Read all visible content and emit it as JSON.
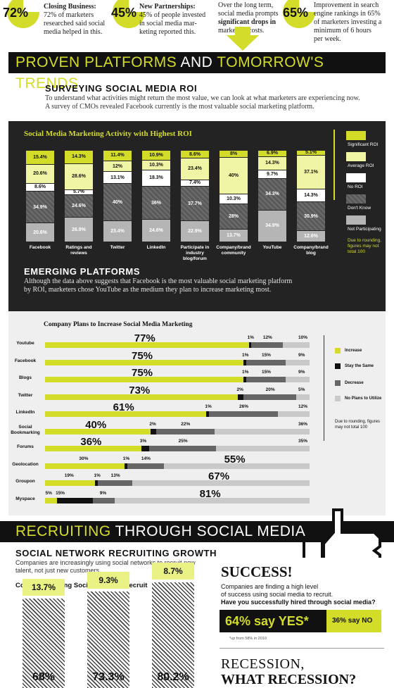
{
  "top_stats": [
    {
      "pct": "72%",
      "title": "Closing Business:",
      "lines": [
        "72% of marketers",
        "researched said social",
        "media helped in this."
      ]
    },
    {
      "pct": "45%",
      "title": "New Partnerships:",
      "lines": [
        "45% of people invested",
        "in social media mar-",
        "keting reported this."
      ]
    },
    {
      "lines": [
        "Over the long term,",
        "social media prompts",
        "significant drops in",
        "marketing costs."
      ]
    },
    {
      "pct": "65%",
      "lines": [
        "Improvement in search",
        "engine rankings in 65%",
        "of marketers investing a",
        "minimum of 6 hours",
        "per week."
      ]
    }
  ],
  "banner1": {
    "part1": "PROVEN PLATFORMS",
    "part2": " AND ",
    "part3": "TOMORROW'S TRENDS"
  },
  "roi_section": {
    "heading": "SURVEYING SOCIAL MEDIA ROI",
    "lines": [
      "To understand what activities might return the most value, we can look at what marketers are experiencing now.",
      "A survey of CMOs revealed Facebook currently is the most valuable social marketing platform."
    ]
  },
  "emerging": {
    "heading": "EMERGING PLATFORMS",
    "lines": [
      "Although the data above suggests that Facebook is the most valuable social marketing platform",
      "by ROI, marketers chose YouTube as the medium they plan to increase marketing most."
    ]
  },
  "banner2": {
    "part1": "RECRUITING",
    "part2": " THROUGH SOCIAL MEDIA"
  },
  "recruit": {
    "heading": "SOCIAL NETWORK RECRUITING GROWTH",
    "lines": [
      "Companies are increasingly using social networks to recruit new",
      "talent, not just new customers."
    ],
    "chart_title": "Companies Using Social Media to Recruit"
  },
  "success": {
    "title": "SUCCESS!",
    "lines": [
      "Companies are finding a high level",
      "of success using social media to recruit."
    ],
    "question": "Have you successfully hired through social media?",
    "yes": "64% say YES*",
    "no": "36% say NO",
    "footnote": "*up from 58% in 2010"
  },
  "recession": {
    "line1": "RECESSION,",
    "line2": "WHAT RECESSION?"
  },
  "colors": {
    "accent": "#d4dc2a",
    "light": "#f0f5a5",
    "dark": "#111111",
    "gray": "#666666",
    "lightgray": "#c9c9c9"
  },
  "icons": {
    "arrow": "down-arrow-icon",
    "thumb": "thumbs-up-icon"
  },
  "chart_data": [
    {
      "type": "bar",
      "stacked": true,
      "title": "Social Media Marketing Activity with Highest ROI",
      "categories": [
        "Facebook",
        "Ratings and reviews",
        "Twitter",
        "LinkedIn",
        "Participate in industry blog/forum",
        "Company/brand community",
        "YouTube",
        "Company/brand blog"
      ],
      "series": [
        {
          "name": "Significant ROI",
          "values": [
            15.4,
            14.3,
            11.4,
            10.9,
            8.6,
            8,
            6.9,
            5.1
          ],
          "labels": [
            "15.4%",
            "14.3%",
            "11.4%",
            "10.9%",
            "8.6%",
            "8%",
            "6.9%",
            "5.1%"
          ]
        },
        {
          "name": "Average ROI",
          "values": [
            20.6,
            28.6,
            12,
            10.3,
            23.4,
            40,
            14.3,
            37.1
          ],
          "labels": [
            "20.6%",
            "28.6%",
            "12%",
            "10.3%",
            "23.4%",
            "40%",
            "14.3%",
            "37.1%"
          ]
        },
        {
          "name": "No ROI",
          "values": [
            8.6,
            5.7,
            13.1,
            18.3,
            7.4,
            10.3,
            9.7,
            14.3
          ],
          "labels": [
            "8.6%",
            "5.7%",
            "13.1%",
            "18.3%",
            "7.4%",
            "10.3%",
            "9.7%",
            "14.3%"
          ]
        },
        {
          "name": "Don't Know",
          "values": [
            34.9,
            24.6,
            40,
            36,
            37.7,
            28,
            34.3,
            30.9
          ],
          "labels": [
            "34.9%",
            "24.6%",
            "40%",
            "36%",
            "37.7%",
            "28%",
            "34.3%",
            "30.9%"
          ]
        },
        {
          "name": "Not Participating",
          "values": [
            20.6,
            26.9,
            23.4,
            24.6,
            22.9,
            13.7,
            34.9,
            12.6
          ],
          "labels": [
            "20.6%",
            "26.9%",
            "23.4%",
            "24.6%",
            "22.9%",
            "13.7%",
            "34.9%",
            "12.6%"
          ]
        }
      ],
      "note": [
        "Due to rounding,",
        "figures may not",
        "total 100"
      ]
    },
    {
      "type": "bar",
      "orientation": "horizontal",
      "stacked": true,
      "title": "Company Plans to Increase Social Media Marketing",
      "categories": [
        "Youtube",
        "Facebook",
        "Blogs",
        "Twitter",
        "LinkedIn",
        "Social Bookmarking",
        "Forums",
        "Geolocation",
        "Groupon",
        "Myspace"
      ],
      "series": [
        {
          "name": "Increase",
          "values": [
            77,
            75,
            75,
            73,
            61,
            40,
            36,
            30,
            19,
            5
          ],
          "labels": [
            "77%",
            "75%",
            "75%",
            "73%",
            "61%",
            "40%",
            "36%",
            "30%",
            "19%",
            "5%"
          ]
        },
        {
          "name": "Stay the Same",
          "values": [
            1,
            1,
            1,
            2,
            1,
            2,
            3,
            1,
            1,
            15
          ],
          "labels": [
            "1%",
            "1%",
            "1%",
            "2%",
            "1%",
            "2%",
            "3%",
            "1%",
            "1%",
            "15%"
          ]
        },
        {
          "name": "Decrease",
          "values": [
            12,
            15,
            15,
            20,
            26,
            22,
            25,
            14,
            13,
            9
          ],
          "labels": [
            "12%",
            "15%",
            "15%",
            "20%",
            "26%",
            "22%",
            "25%",
            "14%",
            "13%",
            "9%"
          ]
        },
        {
          "name": "No Plans to Utilize",
          "values": [
            10,
            9,
            9,
            5,
            12,
            36,
            35,
            55,
            67,
            81
          ],
          "labels": [
            "10%",
            "9%",
            "9%",
            "5%",
            "12%",
            "36%",
            "35%",
            "55%",
            "67%",
            "81%"
          ]
        }
      ],
      "note": [
        "Due to rounding, figures",
        "may not total 100"
      ]
    },
    {
      "type": "bar",
      "stacked": true,
      "title": "Companies Using Social Media to Recruit",
      "series": [
        {
          "values": [
            13.7,
            9.3,
            8.7
          ],
          "labels": [
            "13.7%",
            "9.3%",
            "8.7%"
          ]
        },
        {
          "values": [
            68,
            73.3,
            80.2
          ],
          "labels": [
            "68%",
            "73.3%",
            "80.2%"
          ]
        }
      ]
    }
  ]
}
